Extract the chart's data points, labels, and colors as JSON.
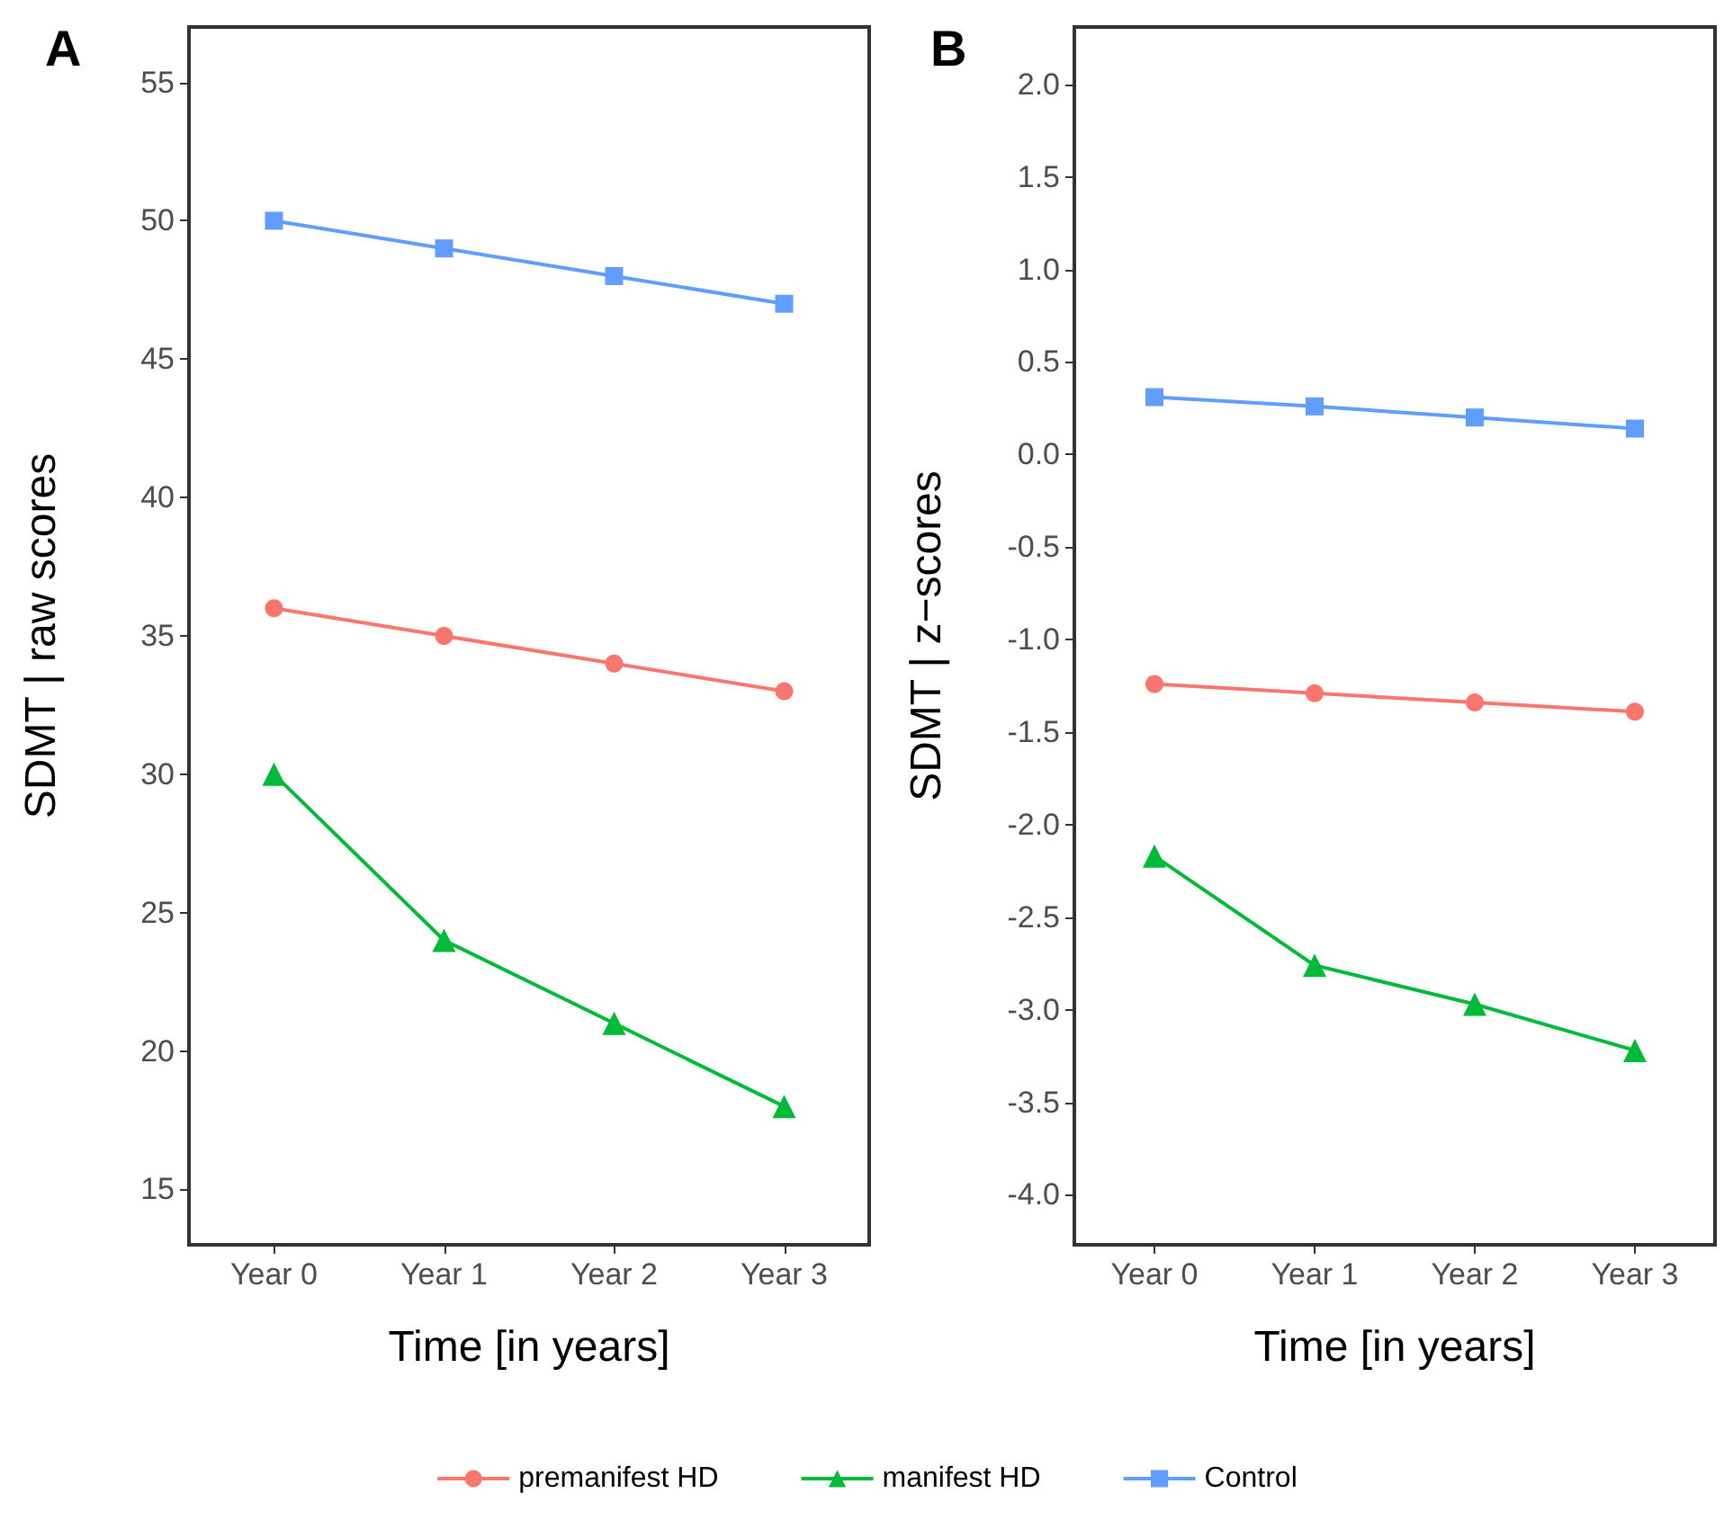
{
  "chart_data": [
    {
      "type": "line",
      "title": "A",
      "xlabel": "Time [in years]",
      "ylabel": "SDMT | raw scores",
      "categories": [
        "Year 0",
        "Year 1",
        "Year 2",
        "Year 3"
      ],
      "ylim": [
        13,
        57
      ],
      "yticks": [
        15,
        20,
        25,
        30,
        35,
        40,
        45,
        50,
        55
      ],
      "grid": false,
      "legend": "bottom",
      "series": [
        {
          "name": "premanifest HD",
          "color": "#f8766d",
          "marker": "circle",
          "values": [
            36,
            35,
            34,
            33
          ]
        },
        {
          "name": "manifest HD",
          "color": "#00ba38",
          "marker": "triangle",
          "values": [
            30,
            24,
            21,
            18
          ]
        },
        {
          "name": "Control",
          "color": "#619cff",
          "marker": "square",
          "values": [
            50,
            49,
            48,
            47
          ]
        }
      ]
    },
    {
      "type": "line",
      "title": "B",
      "xlabel": "Time [in years]",
      "ylabel": "SDMT | z−scores",
      "categories": [
        "Year 0",
        "Year 1",
        "Year 2",
        "Year 3"
      ],
      "ylim": [
        -4.27,
        2.31
      ],
      "yticks": [
        {
          "value": -4,
          "label": "-4.0"
        },
        {
          "value": -3.5,
          "label": "-3.5"
        },
        {
          "value": -3,
          "label": "-3.0"
        },
        {
          "value": -2.5,
          "label": "-2.5"
        },
        {
          "value": -2,
          "label": "-2.0"
        },
        {
          "value": -1.5,
          "label": "-1.5"
        },
        {
          "value": -1,
          "label": "-1.0"
        },
        {
          "value": -0.5,
          "label": "-0.5"
        },
        {
          "value": 0,
          "label": "0.0"
        },
        {
          "value": 0.5,
          "label": "0.5"
        },
        {
          "value": 1,
          "label": "1.0"
        },
        {
          "value": 1.5,
          "label": "1.5"
        },
        {
          "value": 2,
          "label": "2.0"
        }
      ],
      "grid": false,
      "legend": false,
      "series": [
        {
          "color": "#f8766d",
          "marker": "circle",
          "values": [
            -1.24,
            -1.29,
            -1.34,
            -1.39
          ]
        },
        {
          "color": "#00ba38",
          "marker": "triangle",
          "values": [
            -2.17,
            -2.76,
            -2.97,
            -3.22
          ]
        },
        {
          "color": "#619cff",
          "marker": "square",
          "values": [
            0.31,
            0.26,
            0.2,
            0.14
          ]
        }
      ]
    }
  ]
}
